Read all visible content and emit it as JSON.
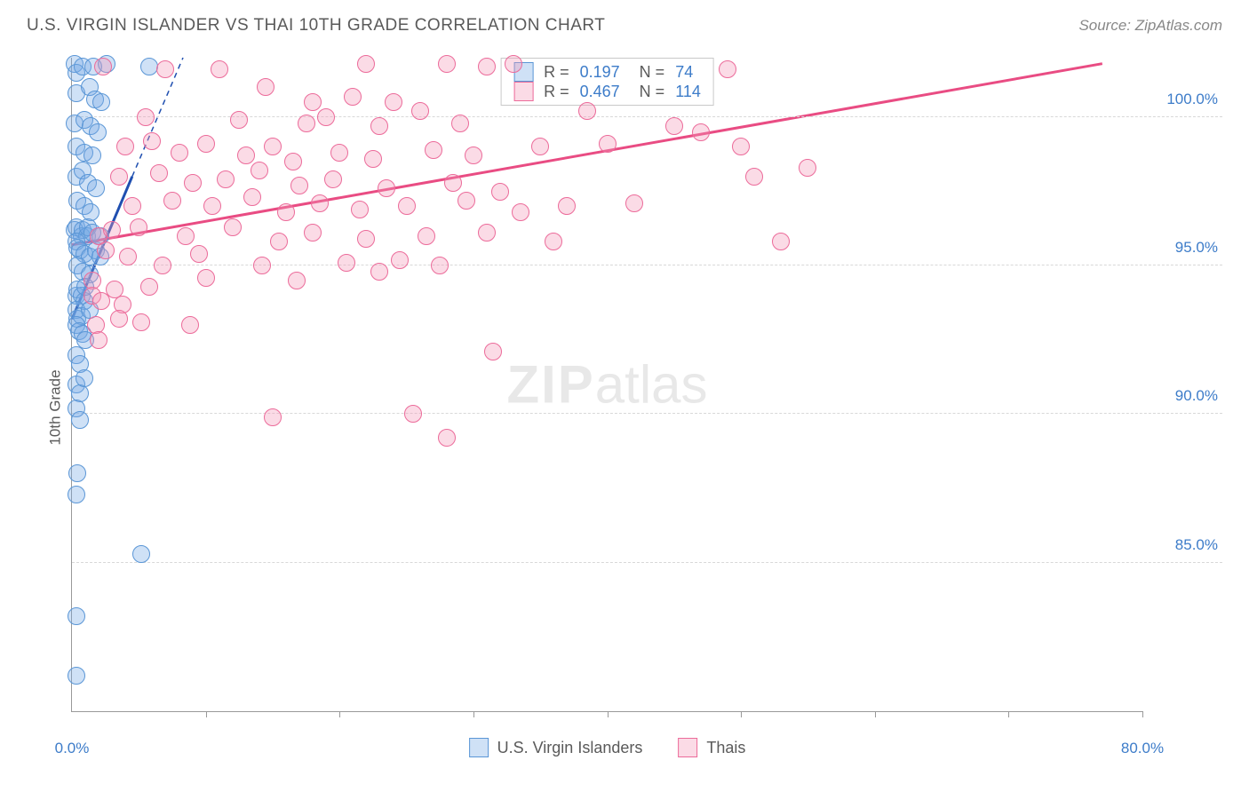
{
  "header": {
    "title": "U.S. VIRGIN ISLANDER VS THAI 10TH GRADE CORRELATION CHART",
    "source": "Source: ZipAtlas.com"
  },
  "ylabel": "10th Grade",
  "watermark": {
    "bold": "ZIP",
    "rest": "atlas"
  },
  "chart": {
    "type": "scatter",
    "xlim": [
      0,
      80
    ],
    "ylim": [
      80,
      102
    ],
    "yticks": [
      {
        "v": 85,
        "label": "85.0%"
      },
      {
        "v": 90,
        "label": "90.0%"
      },
      {
        "v": 95,
        "label": "95.0%"
      },
      {
        "v": 100,
        "label": "100.0%"
      }
    ],
    "xtick_marks": [
      10,
      20,
      30,
      40,
      50,
      60,
      70,
      80
    ],
    "xticks": [
      {
        "v": 0,
        "label": "0.0%"
      },
      {
        "v": 80,
        "label": "80.0%"
      }
    ],
    "grid_color": "#d8d8d8",
    "background_color": "#ffffff",
    "point_radius": 10,
    "series": [
      {
        "name": "U.S. Virgin Islanders",
        "fill": "rgba(118,169,230,0.35)",
        "stroke": "#5a96d6",
        "r_value": "0.197",
        "n_value": "74",
        "trend": {
          "x1": 0,
          "y1": 93.2,
          "x2": 4.5,
          "y2": 98.0,
          "color": "#1f4fb0",
          "width": 3
        },
        "trend_dash": {
          "x1": 4.5,
          "y1": 98.0,
          "x2": 8.3,
          "y2": 102,
          "color": "#1f4fb0",
          "width": 1.5
        },
        "points": [
          [
            0.2,
            101.8
          ],
          [
            0.3,
            101.5
          ],
          [
            0.8,
            101.7
          ],
          [
            1.6,
            101.7
          ],
          [
            2.6,
            101.8
          ],
          [
            5.8,
            101.7
          ],
          [
            0.3,
            100.8
          ],
          [
            1.3,
            101.0
          ],
          [
            1.7,
            100.6
          ],
          [
            2.2,
            100.5
          ],
          [
            0.2,
            99.8
          ],
          [
            0.9,
            99.9
          ],
          [
            1.4,
            99.7
          ],
          [
            1.9,
            99.5
          ],
          [
            0.3,
            99.0
          ],
          [
            0.9,
            98.8
          ],
          [
            1.5,
            98.7
          ],
          [
            0.3,
            98.0
          ],
          [
            0.8,
            98.2
          ],
          [
            1.2,
            97.8
          ],
          [
            1.8,
            97.6
          ],
          [
            0.4,
            97.2
          ],
          [
            0.9,
            97.0
          ],
          [
            1.4,
            96.8
          ],
          [
            0.2,
            96.2
          ],
          [
            0.3,
            96.3
          ],
          [
            0.7,
            96.0
          ],
          [
            0.8,
            96.2
          ],
          [
            1.1,
            96.0
          ],
          [
            1.2,
            96.3
          ],
          [
            1.5,
            96.1
          ],
          [
            2.1,
            96.0
          ],
          [
            0.3,
            95.8
          ],
          [
            0.4,
            95.6
          ],
          [
            0.6,
            95.5
          ],
          [
            0.9,
            95.4
          ],
          [
            1.3,
            95.3
          ],
          [
            1.8,
            95.5
          ],
          [
            0.4,
            95.0
          ],
          [
            0.8,
            94.8
          ],
          [
            1.3,
            94.7
          ],
          [
            2.1,
            95.3
          ],
          [
            0.3,
            94.0
          ],
          [
            0.4,
            94.2
          ],
          [
            0.7,
            94.0
          ],
          [
            0.9,
            93.8
          ],
          [
            1.0,
            94.3
          ],
          [
            0.3,
            93.5
          ],
          [
            0.4,
            93.2
          ],
          [
            0.7,
            93.3
          ],
          [
            1.3,
            93.5
          ],
          [
            0.3,
            93.0
          ],
          [
            0.5,
            92.8
          ],
          [
            0.8,
            92.7
          ],
          [
            1.0,
            92.5
          ],
          [
            0.3,
            92.0
          ],
          [
            0.6,
            91.7
          ],
          [
            0.3,
            91.0
          ],
          [
            0.6,
            90.7
          ],
          [
            0.9,
            91.2
          ],
          [
            0.3,
            90.2
          ],
          [
            0.6,
            89.8
          ],
          [
            0.4,
            88.0
          ],
          [
            0.3,
            87.3
          ],
          [
            5.2,
            85.3
          ],
          [
            0.3,
            83.2
          ],
          [
            0.3,
            81.2
          ]
        ]
      },
      {
        "name": "Thais",
        "fill": "rgba(244,153,184,0.35)",
        "stroke": "#ec6b9a",
        "r_value": "0.467",
        "n_value": "114",
        "trend": {
          "x1": 0,
          "y1": 95.7,
          "x2": 77,
          "y2": 101.8,
          "color": "#e94c83",
          "width": 3
        },
        "points": [
          [
            2.3,
            101.7
          ],
          [
            7.0,
            101.6
          ],
          [
            11.0,
            101.6
          ],
          [
            22.0,
            101.8
          ],
          [
            28.0,
            101.8
          ],
          [
            31.0,
            101.7
          ],
          [
            33.0,
            101.8
          ],
          [
            49.0,
            101.6
          ],
          [
            14.5,
            101.0
          ],
          [
            18.0,
            100.5
          ],
          [
            21.0,
            100.7
          ],
          [
            24.0,
            100.5
          ],
          [
            5.5,
            100.0
          ],
          [
            12.5,
            99.9
          ],
          [
            17.5,
            99.8
          ],
          [
            19.0,
            100.0
          ],
          [
            23.0,
            99.7
          ],
          [
            26.0,
            100.2
          ],
          [
            29.0,
            99.8
          ],
          [
            38.5,
            100.2
          ],
          [
            45.0,
            99.7
          ],
          [
            47.0,
            99.5
          ],
          [
            50.0,
            99.0
          ],
          [
            4.0,
            99.0
          ],
          [
            6.0,
            99.2
          ],
          [
            8.0,
            98.8
          ],
          [
            10.0,
            99.1
          ],
          [
            13.0,
            98.7
          ],
          [
            15.0,
            99.0
          ],
          [
            16.5,
            98.5
          ],
          [
            20.0,
            98.8
          ],
          [
            22.5,
            98.6
          ],
          [
            27.0,
            98.9
          ],
          [
            30.0,
            98.7
          ],
          [
            35.0,
            99.0
          ],
          [
            40.0,
            99.1
          ],
          [
            51.0,
            98.0
          ],
          [
            55.0,
            98.3
          ],
          [
            3.5,
            98.0
          ],
          [
            6.5,
            98.1
          ],
          [
            9.0,
            97.8
          ],
          [
            11.5,
            97.9
          ],
          [
            14.0,
            98.2
          ],
          [
            17.0,
            97.7
          ],
          [
            19.5,
            97.9
          ],
          [
            23.5,
            97.6
          ],
          [
            28.5,
            97.8
          ],
          [
            32.0,
            97.5
          ],
          [
            4.5,
            97.0
          ],
          [
            7.5,
            97.2
          ],
          [
            10.5,
            97.0
          ],
          [
            13.5,
            97.3
          ],
          [
            16.0,
            96.8
          ],
          [
            18.5,
            97.1
          ],
          [
            21.5,
            96.9
          ],
          [
            25.0,
            97.0
          ],
          [
            29.5,
            97.2
          ],
          [
            33.5,
            96.8
          ],
          [
            37.0,
            97.0
          ],
          [
            42.0,
            97.1
          ],
          [
            2.0,
            96.0
          ],
          [
            3.0,
            96.2
          ],
          [
            5.0,
            96.3
          ],
          [
            8.5,
            96.0
          ],
          [
            12.0,
            96.3
          ],
          [
            15.5,
            95.8
          ],
          [
            18.0,
            96.1
          ],
          [
            22.0,
            95.9
          ],
          [
            26.5,
            96.0
          ],
          [
            31.0,
            96.1
          ],
          [
            36.0,
            95.8
          ],
          [
            53.0,
            95.8
          ],
          [
            2.5,
            95.5
          ],
          [
            4.2,
            95.3
          ],
          [
            6.8,
            95.0
          ],
          [
            9.5,
            95.4
          ],
          [
            14.2,
            95.0
          ],
          [
            20.5,
            95.1
          ],
          [
            24.5,
            95.2
          ],
          [
            1.5,
            94.5
          ],
          [
            3.2,
            94.2
          ],
          [
            5.8,
            94.3
          ],
          [
            10.0,
            94.6
          ],
          [
            16.8,
            94.5
          ],
          [
            23.0,
            94.8
          ],
          [
            27.5,
            95.0
          ],
          [
            1.5,
            94.0
          ],
          [
            2.2,
            93.8
          ],
          [
            3.8,
            93.7
          ],
          [
            1.8,
            93.0
          ],
          [
            3.5,
            93.2
          ],
          [
            5.2,
            93.1
          ],
          [
            8.8,
            93.0
          ],
          [
            2.0,
            92.5
          ],
          [
            31.5,
            92.1
          ],
          [
            15.0,
            89.9
          ],
          [
            25.5,
            90.0
          ],
          [
            28.0,
            89.2
          ]
        ]
      }
    ],
    "legend_bottom": [
      {
        "label": "U.S. Virgin Islanders",
        "fill": "rgba(118,169,230,0.35)",
        "stroke": "#5a96d6"
      },
      {
        "label": "Thais",
        "fill": "rgba(244,153,184,0.35)",
        "stroke": "#ec6b9a"
      }
    ]
  }
}
